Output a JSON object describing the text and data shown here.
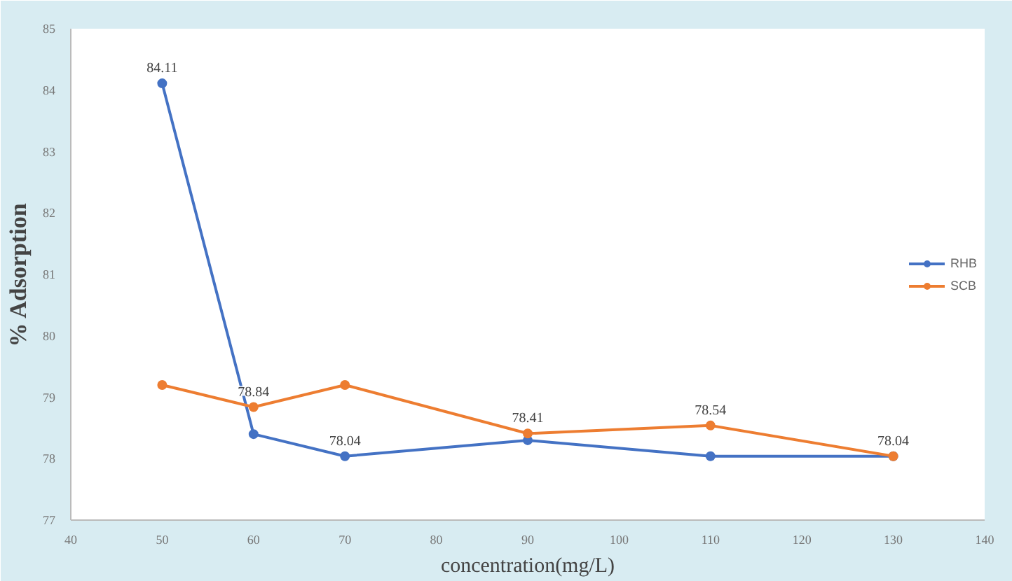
{
  "chart_data": {
    "type": "line",
    "xlabel": "concentration(mg/L)",
    "ylabel": "% Adsorption",
    "x": [
      50,
      60,
      70,
      90,
      110,
      130
    ],
    "series": [
      {
        "name": "RHB",
        "color": "#4472c4",
        "values": [
          84.11,
          78.4,
          78.04,
          78.3,
          78.04,
          78.04
        ],
        "value_labels": [
          "84.11",
          null,
          "78.04",
          null,
          null,
          "78.04"
        ]
      },
      {
        "name": "SCB",
        "color": "#ed7d31",
        "values": [
          79.2,
          78.84,
          79.2,
          78.41,
          78.54,
          78.04
        ],
        "value_labels": [
          null,
          "78.84",
          null,
          "78.41",
          "78.54",
          null
        ]
      }
    ],
    "xlim": [
      40,
      140
    ],
    "xticks": [
      40,
      50,
      60,
      70,
      80,
      90,
      100,
      110,
      120,
      130,
      140
    ],
    "ylim": [
      77,
      85
    ],
    "yticks": [
      77,
      78,
      79,
      80,
      81,
      82,
      83,
      84,
      85
    ],
    "grid": false,
    "legend": "right",
    "marker": "circle",
    "line_style": "solid"
  }
}
